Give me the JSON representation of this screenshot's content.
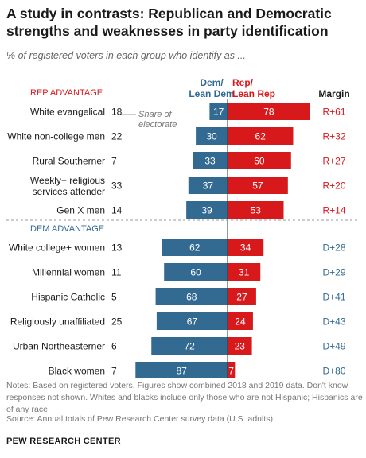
{
  "title": "A study in contrasts: Republican and Democratic strengths and weaknesses in party identification",
  "subtitle": "% of registered voters in each group who identify as ...",
  "column_headers": {
    "dem_line1": "Dem/",
    "dem_line2": "Lean Dem",
    "rep_line1": "Rep/",
    "rep_line2": "Lean Rep",
    "margin": "Margin"
  },
  "share_annotation": {
    "line1": "Share of",
    "line2": "electorate"
  },
  "notes": "Notes: Based on registered voters. Figures show combined 2018 and 2019 data. Don't know responses not shown. Whites and blacks include only those who are not Hispanic; Hispanics are of any race.",
  "source": "Source: Annual totals of Pew Research Center survey data (U.S. adults).",
  "brand": "PEW RESEARCH CENTER",
  "colors": {
    "dem": "#336a92",
    "rep": "#d7191c",
    "section": "#d7191c",
    "section_dem": "#336a92",
    "text": "#1a1a1a",
    "muted": "#666666"
  },
  "chart_data": {
    "type": "bar",
    "orientation": "horizontal diverging",
    "sections": [
      {
        "label": "REP ADVANTAGE",
        "groups": [
          {
            "name": "White evangelical",
            "share": 18,
            "dem": 17,
            "rep": 78,
            "margin": "R+61"
          },
          {
            "name": "White non-college men",
            "share": 22,
            "dem": 30,
            "rep": 62,
            "margin": "R+32"
          },
          {
            "name": "Rural Southerner",
            "share": 7,
            "dem": 33,
            "rep": 60,
            "margin": "R+27"
          },
          {
            "name_lines": [
              "Weekly+ religious",
              "services attender"
            ],
            "share": 33,
            "dem": 37,
            "rep": 57,
            "margin": "R+20"
          },
          {
            "name": "Gen X men",
            "share": 14,
            "dem": 39,
            "rep": 53,
            "margin": "R+14"
          }
        ]
      },
      {
        "label": "DEM ADVANTAGE",
        "groups": [
          {
            "name": "White college+ women",
            "share": 13,
            "dem": 62,
            "rep": 34,
            "margin": "D+28"
          },
          {
            "name": "Millennial women",
            "share": 11,
            "dem": 60,
            "rep": 31,
            "margin": "D+29"
          },
          {
            "name": "Hispanic Catholic",
            "share": 5,
            "dem": 68,
            "rep": 27,
            "margin": "D+41"
          },
          {
            "name": "Religiously unaffiliated",
            "share": 25,
            "dem": 67,
            "rep": 24,
            "margin": "D+43"
          },
          {
            "name": "Urban Northeasterner",
            "share": 6,
            "dem": 72,
            "rep": 23,
            "margin": "D+49"
          },
          {
            "name": "Black women",
            "share": 7,
            "dem": 87,
            "rep": 7,
            "margin": "D+80"
          }
        ]
      }
    ]
  }
}
